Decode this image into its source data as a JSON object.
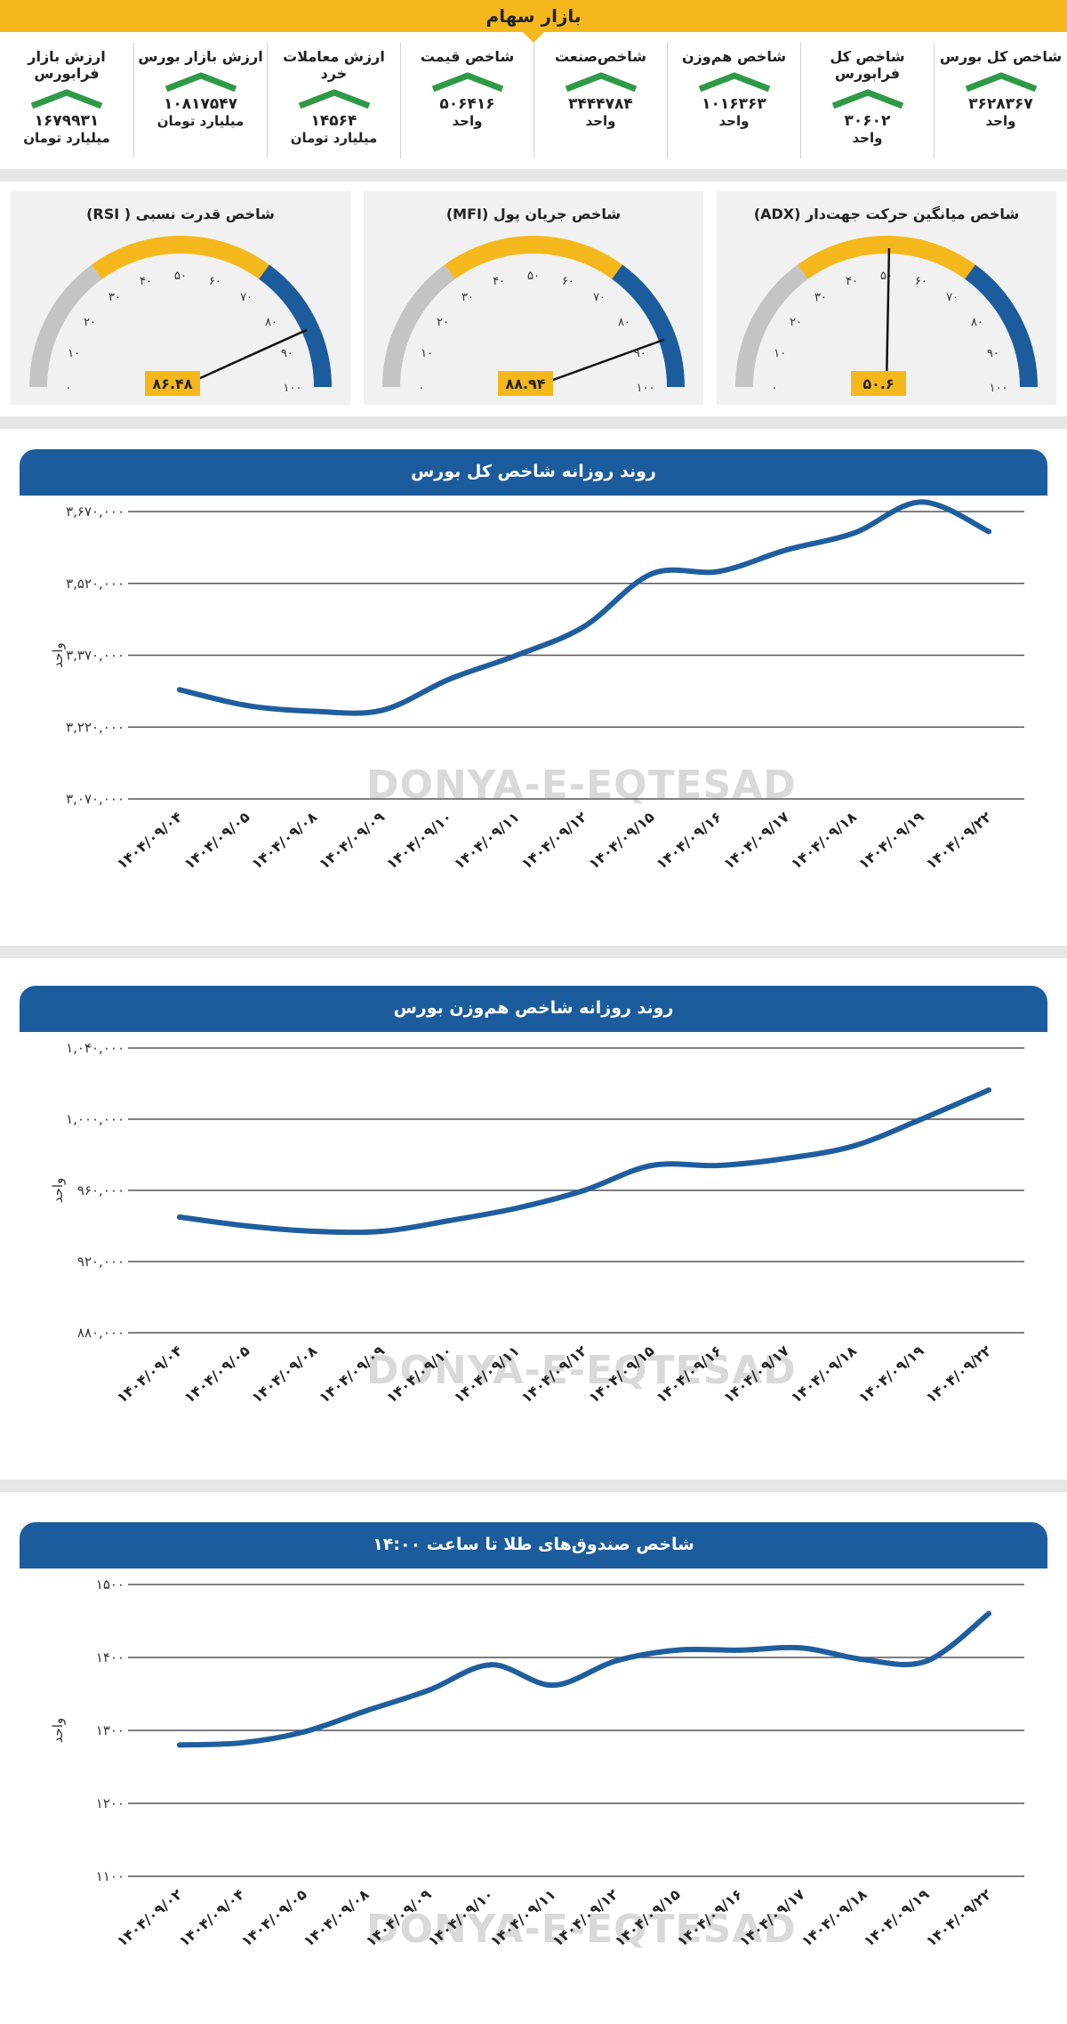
{
  "header": {
    "title": "بازار سهام"
  },
  "stats": [
    {
      "label": "شاخص کل بورس",
      "value": "۳۶۲۸۳۶۷",
      "unit": "واحد"
    },
    {
      "label": "شاخص کل فرابورس",
      "value": "۳۰۶۰۲",
      "unit": "واحد"
    },
    {
      "label": "شاخص هم‌وزن",
      "value": "۱۰۱۶۳۶۳",
      "unit": "واحد"
    },
    {
      "label": "شاخص‌صنعت",
      "value": "۳۴۴۴۷۸۴",
      "unit": "واحد"
    },
    {
      "label": "شاخص قیمت",
      "value": "۵۰۶۴۱۶",
      "unit": "واحد"
    },
    {
      "label": "ارزش معاملات خرد",
      "value": "۱۴۵۶۴",
      "unit": "میلیارد تومان"
    },
    {
      "label": "ارزش بازار بورس",
      "value": "۱۰۸۱۷۵۴۷",
      "unit": "میلیارد تومان"
    },
    {
      "label": "ارزش بازار فرابورس",
      "value": "۱۶۷۹۹۳۱",
      "unit": "میلیارد تومان"
    }
  ],
  "trend_icon": "up-arrow-icon",
  "colors": {
    "accent": "#f5b81c",
    "blue": "#1c5c9d",
    "green": "#2e9a46",
    "gray": "#c4c4c4",
    "line": "#1f5e9e"
  },
  "gauges": [
    {
      "title": "شاخص قدرت نسبی ( RSI)",
      "value": 86.48,
      "value_label": "۸۶.۴۸"
    },
    {
      "title": "شاخص جریان پول (MFI)",
      "value": 88.94,
      "value_label": "۸۸.۹۴"
    },
    {
      "title": "شاخص میانگین حرکت جهت‌دار (ADX)",
      "value": 50.6,
      "value_label": "۵۰.۶"
    }
  ],
  "gauge_ticks": [
    "۰",
    "۱۰",
    "۲۰",
    "۳۰",
    "۴۰",
    "۵۰",
    "۶۰",
    "۷۰",
    "۸۰",
    "۹۰",
    "۱۰۰"
  ],
  "watermark": "DONYA-E-EQTESAD",
  "chart_data": [
    {
      "type": "line",
      "title": "روند روزانه شاخص کل بورس",
      "ylabel": "واحد",
      "ylim": [
        3070000,
        3670000
      ],
      "yticks": [
        "۳,۰۷۰,۰۰۰",
        "۳,۲۲۰,۰۰۰",
        "۳,۳۷۰,۰۰۰",
        "۳,۵۲۰,۰۰۰",
        "۳,۶۷۰,۰۰۰"
      ],
      "categories": [
        "۱۴۰۴/۰۹/۰۴",
        "۱۴۰۴/۰۹/۰۵",
        "۱۴۰۴/۰۹/۰۸",
        "۱۴۰۴/۰۹/۰۹",
        "۱۴۰۴/۰۹/۱۰",
        "۱۴۰۴/۰۹/۱۱",
        "۱۴۰۴/۰۹/۱۲",
        "۱۴۰۴/۰۹/۱۵",
        "۱۴۰۴/۰۹/۱۶",
        "۱۴۰۴/۰۹/۱۷",
        "۱۴۰۴/۰۹/۱۸",
        "۱۴۰۴/۰۹/۱۹",
        "۱۴۰۴/۰۹/۲۲"
      ],
      "values": [
        3298000,
        3265000,
        3253000,
        3255000,
        3320000,
        3370000,
        3430000,
        3540000,
        3545000,
        3590000,
        3625000,
        3690000,
        3628367
      ],
      "grid": true
    },
    {
      "type": "line",
      "title": "روند روزانه شاخص هم‌وزن بورس",
      "ylabel": "واحد",
      "ylim": [
        880000,
        1040000
      ],
      "yticks": [
        "۸۸۰,۰۰۰",
        "۹۲۰,۰۰۰",
        "۹۶۰,۰۰۰",
        "۱,۰۰۰,۰۰۰",
        "۱,۰۴۰,۰۰۰"
      ],
      "categories": [
        "۱۴۰۴/۰۹/۰۴",
        "۱۴۰۴/۰۹/۰۵",
        "۱۴۰۴/۰۹/۰۸",
        "۱۴۰۴/۰۹/۰۹",
        "۱۴۰۴/۰۹/۱۰",
        "۱۴۰۴/۰۹/۱۱",
        "۱۴۰۴/۰۹/۱۲",
        "۱۴۰۴/۰۹/۱۵",
        "۱۴۰۴/۰۹/۱۶",
        "۱۴۰۴/۰۹/۱۷",
        "۱۴۰۴/۰۹/۱۸",
        "۱۴۰۴/۰۹/۱۹",
        "۱۴۰۴/۰۹/۲۲"
      ],
      "values": [
        945000,
        940000,
        937000,
        937000,
        943000,
        950000,
        960000,
        974000,
        974000,
        978000,
        985000,
        1000000,
        1016363
      ],
      "grid": true
    },
    {
      "type": "line",
      "title": "شاخص صندوق‌های طلا تا ساعت ۱۴:۰۰",
      "ylabel": "واحد",
      "ylim": [
        1100,
        1500
      ],
      "yticks": [
        "۱۱۰۰",
        "۱۲۰۰",
        "۱۳۰۰",
        "۱۴۰۰",
        "۱۵۰۰"
      ],
      "categories": [
        "۱۴۰۴/۰۹/۰۲",
        "۱۴۰۴/۰۹/۰۴",
        "۱۴۰۴/۰۹/۰۵",
        "۱۴۰۴/۰۹/۰۸",
        "۱۴۰۴/۰۹/۰۹",
        "۱۴۰۴/۰۹/۱۰",
        "۱۴۰۴/۰۹/۱۱",
        "۱۴۰۴/۰۹/۱۲",
        "۱۴۰۴/۰۹/۱۵",
        "۱۴۰۴/۰۹/۱۶",
        "۱۴۰۴/۰۹/۱۷",
        "۱۴۰۴/۰۹/۱۸",
        "۱۴۰۴/۰۹/۱۹",
        "۱۴۰۴/۰۹/۲۲"
      ],
      "values": [
        1280,
        1283,
        1298,
        1327,
        1355,
        1390,
        1362,
        1395,
        1410,
        1410,
        1413,
        1397,
        1395,
        1460
      ],
      "grid": true
    }
  ]
}
